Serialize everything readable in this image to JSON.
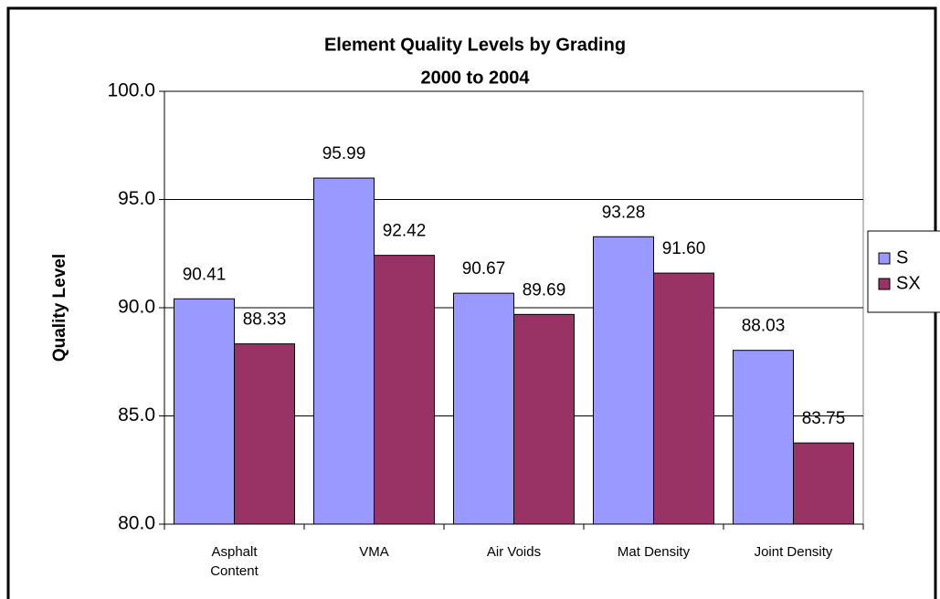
{
  "chart_data": {
    "type": "bar",
    "title": "Element Quality Levels by Grading",
    "subtitle": "2000 to 2004",
    "y_label": "Quality Level",
    "categories": [
      "Asphalt Content",
      "VMA",
      "Air Voids",
      "Mat Density",
      "Joint Density"
    ],
    "series": [
      {
        "name": "S",
        "color": "#9999ff",
        "values": [
          90.41,
          95.99,
          90.67,
          93.28,
          88.03
        ],
        "value_labels": [
          "90.41",
          "95.99",
          "90.67",
          "93.28",
          "88.03"
        ]
      },
      {
        "name": "SX",
        "color": "#993366",
        "values": [
          88.33,
          92.42,
          89.69,
          91.6,
          83.75
        ],
        "value_labels": [
          "88.33",
          "92.42",
          "89.69",
          "91.60",
          "83.75"
        ]
      }
    ],
    "ylim": [
      80,
      100
    ],
    "yticks": [
      {
        "value": 80,
        "label": "80.0"
      },
      {
        "value": 85,
        "label": "85.0"
      },
      {
        "value": 90,
        "label": "90.0"
      },
      {
        "value": 95,
        "label": "95.0"
      },
      {
        "value": 100,
        "label": "100.0"
      }
    ],
    "grid": true,
    "legend": "right"
  }
}
